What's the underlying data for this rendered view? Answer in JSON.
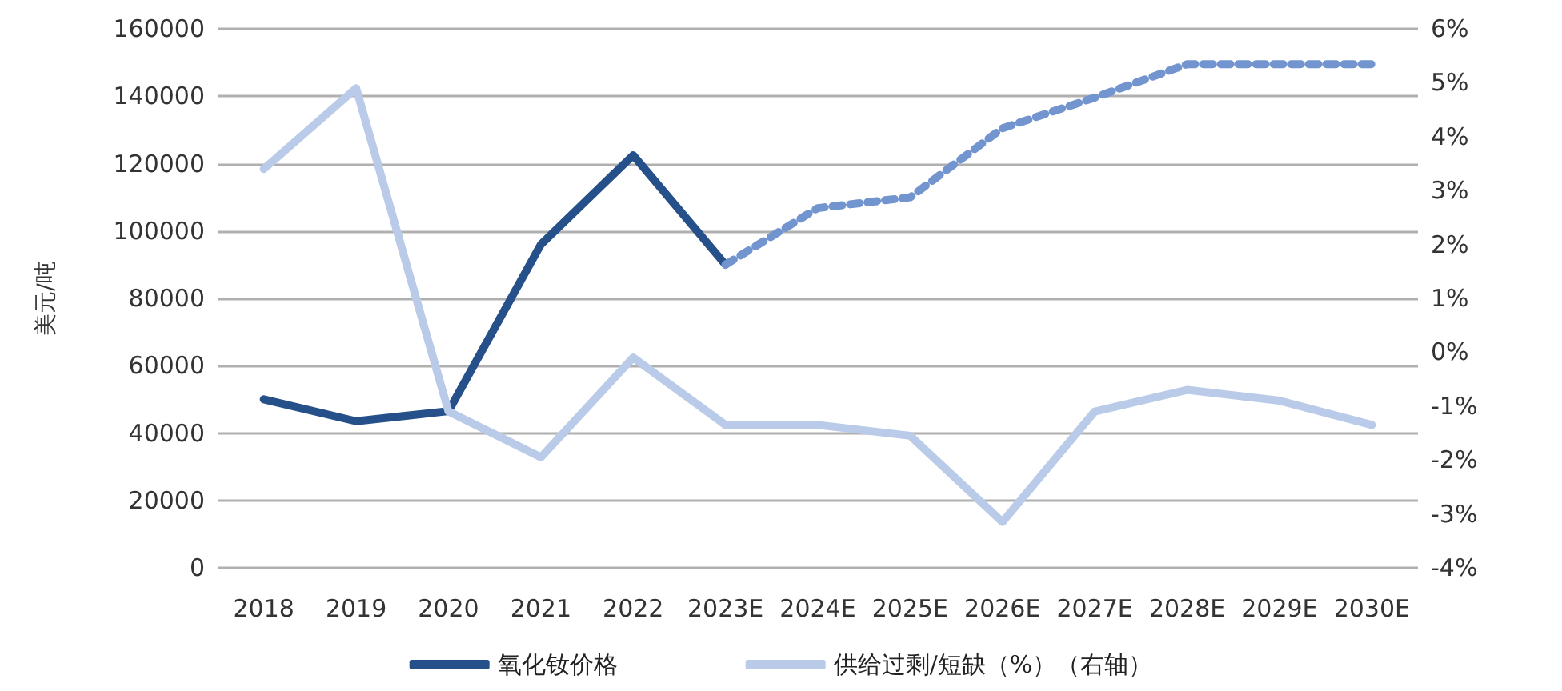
{
  "chart_data": {
    "type": "line",
    "ylabel": "美元/吨",
    "categories": [
      "2018",
      "2019",
      "2020",
      "2021",
      "2022",
      "2023E",
      "2024E",
      "2025E",
      "2026E",
      "2027E",
      "2028E",
      "2029E",
      "2030E"
    ],
    "series": [
      {
        "name": "氧化钕价格",
        "color": "#255089",
        "line_style": "solid",
        "values": [
          50000,
          43500,
          46500,
          96000,
          122500,
          90000,
          null,
          null,
          null,
          null,
          null,
          null,
          null
        ]
      },
      {
        "color": "#7395cf",
        "line_style": "dashed",
        "values": [
          null,
          null,
          null,
          null,
          null,
          90000,
          106800,
          110000,
          130500,
          139600,
          149500,
          149500,
          149500
        ]
      },
      {
        "name": "供给过剩/短缺（%）（右轴）",
        "color": "#b9cbe8",
        "line_style": "solid",
        "axis": "y2",
        "values": [
          3.4,
          4.9,
          -1.1,
          -1.95,
          -0.1,
          -1.35,
          -1.35,
          -1.55,
          -3.15,
          -1.1,
          -0.7,
          -0.9,
          -1.35
        ]
      }
    ],
    "ylim": [
      0,
      160000
    ],
    "yticks": [
      0,
      20000,
      40000,
      60000,
      80000,
      100000,
      120000,
      140000,
      160000
    ],
    "y2lim": [
      -4,
      6
    ],
    "y2ticks": [
      {
        "value": -4,
        "label": "-4%"
      },
      {
        "value": -3,
        "label": "-3%"
      },
      {
        "value": -2,
        "label": "-2%"
      },
      {
        "value": -1,
        "label": "-1%"
      },
      {
        "value": 0,
        "label": "0%"
      },
      {
        "value": 1,
        "label": "1%"
      },
      {
        "value": 2,
        "label": "2%"
      },
      {
        "value": 3,
        "label": "3%"
      },
      {
        "value": 4,
        "label": "4%"
      },
      {
        "value": 5,
        "label": "5%"
      },
      {
        "value": 6,
        "label": "6%"
      }
    ],
    "grid": "y",
    "legend": "bottom",
    "marker": "none"
  }
}
